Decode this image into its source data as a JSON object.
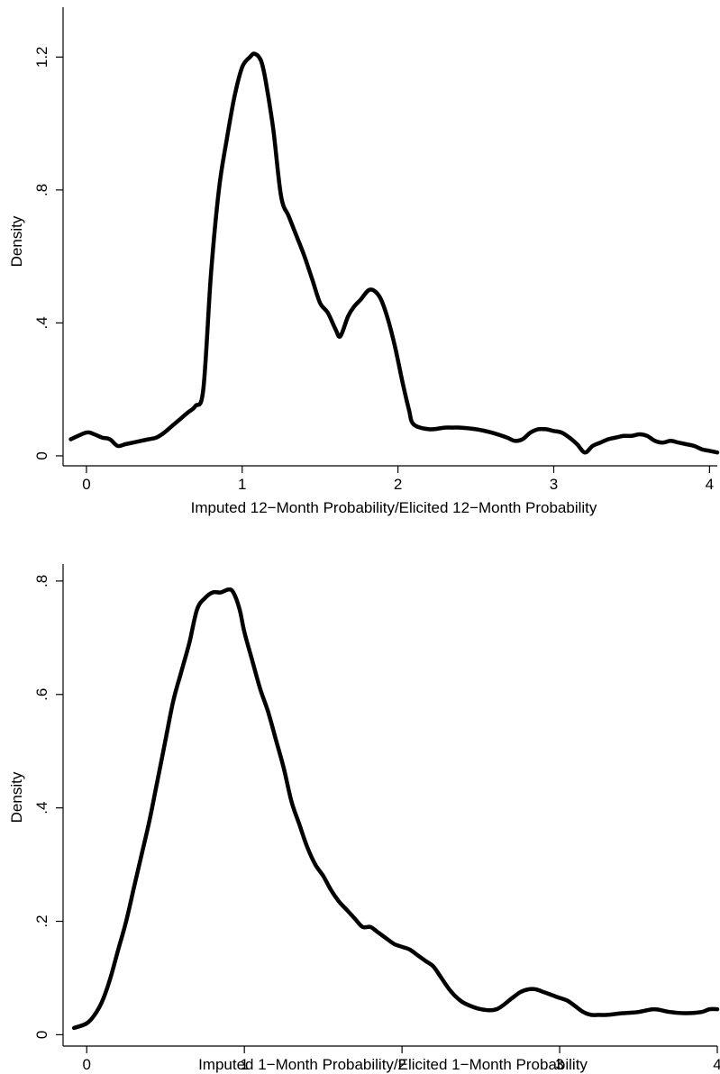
{
  "chart_data": [
    {
      "type": "line",
      "xlabel": "Imputed 12−Month Probability/Elicited 12−Month Probability",
      "ylabel": "Density",
      "xlim": [
        -0.15,
        4.05
      ],
      "ylim": [
        -0.03,
        1.35
      ],
      "xticks": [
        0,
        1,
        2,
        3,
        4
      ],
      "xtick_labels": [
        "0",
        "1",
        "2",
        "3",
        "4"
      ],
      "yticks": [
        0,
        0.4,
        0.8,
        1.2
      ],
      "ytick_labels": [
        "0",
        ".4",
        ".8",
        "1.2"
      ],
      "grid": false,
      "x": [
        -0.1,
        0.0,
        0.05,
        0.1,
        0.15,
        0.2,
        0.25,
        0.3,
        0.35,
        0.4,
        0.45,
        0.5,
        0.55,
        0.6,
        0.65,
        0.7,
        0.75,
        0.8,
        0.85,
        0.9,
        0.95,
        1.0,
        1.05,
        1.08,
        1.12,
        1.15,
        1.2,
        1.25,
        1.3,
        1.35,
        1.4,
        1.45,
        1.5,
        1.55,
        1.6,
        1.63,
        1.68,
        1.72,
        1.76,
        1.82,
        1.88,
        1.93,
        1.98,
        2.03,
        2.07,
        2.1,
        2.2,
        2.3,
        2.35,
        2.4,
        2.5,
        2.6,
        2.7,
        2.75,
        2.8,
        2.85,
        2.9,
        2.95,
        3.0,
        3.05,
        3.1,
        3.15,
        3.2,
        3.25,
        3.3,
        3.35,
        3.4,
        3.45,
        3.5,
        3.55,
        3.6,
        3.65,
        3.7,
        3.75,
        3.8,
        3.85,
        3.9,
        3.95,
        4.0,
        4.05
      ],
      "series": [
        {
          "values": [
            0.05,
            0.07,
            0.065,
            0.055,
            0.05,
            0.03,
            0.035,
            0.04,
            0.045,
            0.05,
            0.055,
            0.07,
            0.09,
            0.11,
            0.13,
            0.15,
            0.2,
            0.55,
            0.8,
            0.95,
            1.08,
            1.17,
            1.2,
            1.21,
            1.19,
            1.13,
            0.98,
            0.78,
            0.72,
            0.66,
            0.6,
            0.53,
            0.46,
            0.43,
            0.38,
            0.36,
            0.42,
            0.45,
            0.47,
            0.5,
            0.48,
            0.42,
            0.33,
            0.22,
            0.14,
            0.095,
            0.08,
            0.085,
            0.085,
            0.085,
            0.08,
            0.07,
            0.055,
            0.045,
            0.05,
            0.07,
            0.08,
            0.08,
            0.075,
            0.07,
            0.055,
            0.035,
            0.01,
            0.03,
            0.04,
            0.05,
            0.055,
            0.06,
            0.06,
            0.065,
            0.06,
            0.045,
            0.04,
            0.045,
            0.04,
            0.035,
            0.03,
            0.02,
            0.015,
            0.01
          ]
        }
      ]
    },
    {
      "type": "line",
      "xlabel": "Imputed 1−Month Probability/Elicited 1−Month Probability",
      "ylabel": "Density",
      "xlim": [
        -0.15,
        4.0
      ],
      "ylim": [
        -0.02,
        0.83
      ],
      "xticks": [
        0,
        1,
        2,
        3,
        4
      ],
      "xtick_labels": [
        "0",
        "1",
        "2",
        "3",
        "4"
      ],
      "yticks": [
        0,
        0.2,
        0.4,
        0.6,
        0.8
      ],
      "ytick_labels": [
        "0",
        ".2",
        ".4",
        ".6",
        ".8"
      ],
      "grid": false,
      "x": [
        -0.08,
        0.0,
        0.05,
        0.1,
        0.15,
        0.2,
        0.25,
        0.3,
        0.35,
        0.4,
        0.45,
        0.5,
        0.55,
        0.6,
        0.65,
        0.7,
        0.75,
        0.8,
        0.85,
        0.9,
        0.93,
        0.97,
        1.0,
        1.05,
        1.1,
        1.15,
        1.2,
        1.25,
        1.3,
        1.35,
        1.4,
        1.45,
        1.5,
        1.55,
        1.6,
        1.65,
        1.7,
        1.75,
        1.8,
        1.85,
        1.9,
        1.95,
        2.0,
        2.05,
        2.1,
        2.15,
        2.2,
        2.25,
        2.3,
        2.35,
        2.4,
        2.5,
        2.6,
        2.7,
        2.75,
        2.8,
        2.85,
        2.9,
        2.95,
        3.0,
        3.05,
        3.1,
        3.15,
        3.2,
        3.25,
        3.3,
        3.4,
        3.5,
        3.6,
        3.7,
        3.8,
        3.9,
        3.95,
        4.0
      ],
      "series": [
        {
          "values": [
            0.012,
            0.02,
            0.035,
            0.06,
            0.1,
            0.15,
            0.2,
            0.26,
            0.32,
            0.38,
            0.45,
            0.52,
            0.59,
            0.64,
            0.69,
            0.75,
            0.77,
            0.78,
            0.78,
            0.785,
            0.78,
            0.75,
            0.71,
            0.66,
            0.61,
            0.57,
            0.52,
            0.47,
            0.41,
            0.37,
            0.33,
            0.3,
            0.28,
            0.255,
            0.235,
            0.22,
            0.205,
            0.19,
            0.19,
            0.18,
            0.17,
            0.16,
            0.155,
            0.15,
            0.14,
            0.13,
            0.12,
            0.1,
            0.08,
            0.065,
            0.055,
            0.045,
            0.045,
            0.065,
            0.075,
            0.08,
            0.08,
            0.075,
            0.07,
            0.065,
            0.06,
            0.05,
            0.04,
            0.035,
            0.035,
            0.035,
            0.038,
            0.04,
            0.045,
            0.04,
            0.038,
            0.04,
            0.045,
            0.045
          ]
        }
      ]
    }
  ]
}
